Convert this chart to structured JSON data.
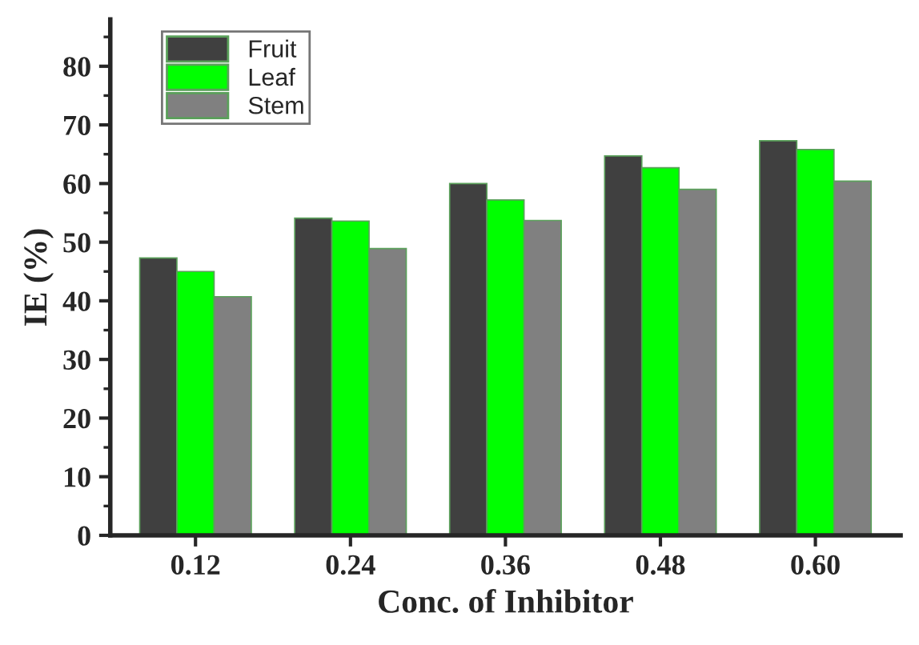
{
  "chart_data": {
    "type": "bar",
    "xlabel": "Conc. of Inhibitor",
    "ylabel": "IE (%)",
    "categories": [
      "0.12",
      "0.24",
      "0.36",
      "0.48",
      "0.60"
    ],
    "series": [
      {
        "name": "Fruit",
        "color": "#404040",
        "values": [
          47.3,
          54.1,
          60.0,
          64.7,
          67.3
        ]
      },
      {
        "name": "Leaf",
        "color": "#00ff00",
        "values": [
          45.0,
          53.6,
          57.2,
          62.7,
          65.8
        ]
      },
      {
        "name": "Stem",
        "color": "#808080",
        "values": [
          40.7,
          48.9,
          53.7,
          59.0,
          60.4
        ]
      }
    ],
    "ylim": [
      0,
      88
    ],
    "yticks": [
      0,
      10,
      20,
      30,
      40,
      50,
      60,
      70,
      80
    ],
    "grid": false,
    "legend": "top left"
  }
}
